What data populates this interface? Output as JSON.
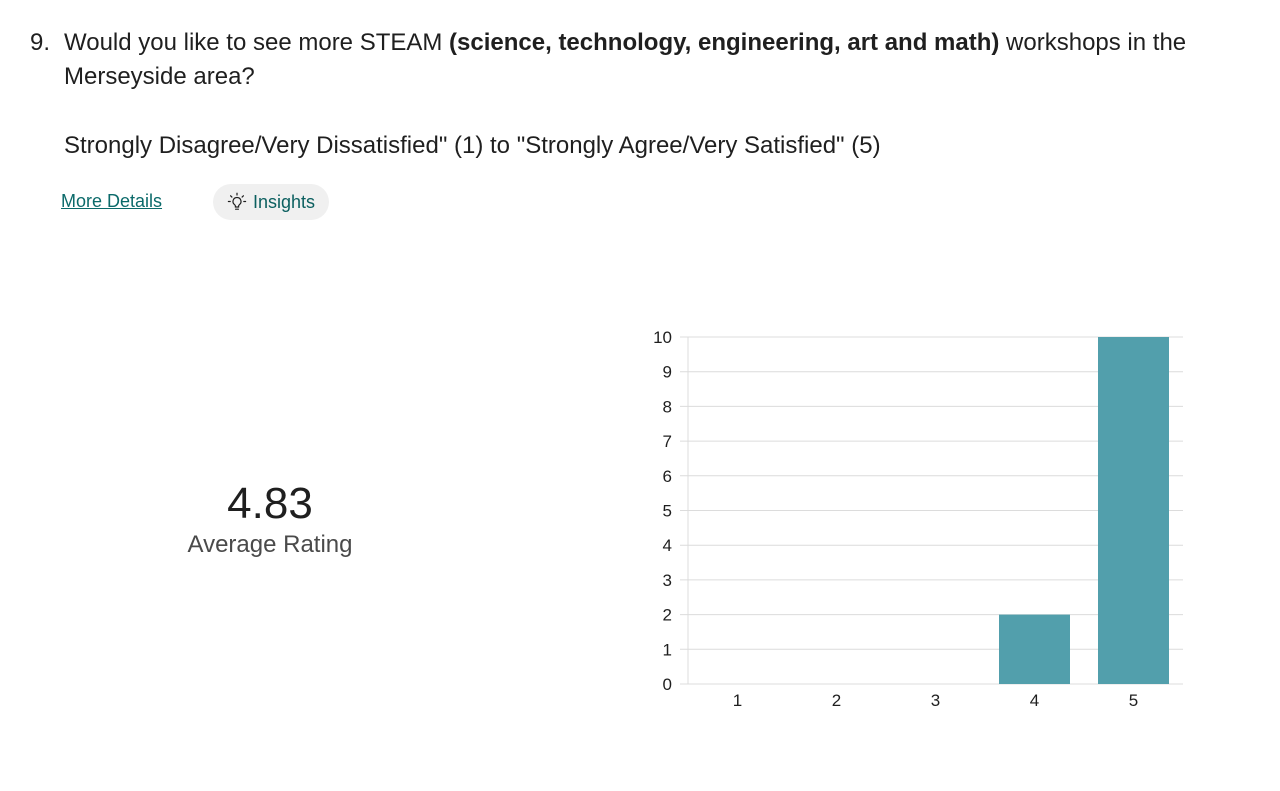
{
  "question": {
    "number": "9.",
    "text_before": "Would you like to see more STEAM ",
    "text_bold": "(science, technology, engineering, art and math)",
    "text_after": " workshops in the Merseyside area?",
    "scale_description": "Strongly Disagree/Very Dissatisfied\" (1) to \"Strongly Agree/Very Satisfied\" (5)"
  },
  "actions": {
    "more_details_label": "More Details",
    "insights_label": "Insights",
    "insights_icon": "lightbulb-icon"
  },
  "summary": {
    "average_value": "4.83",
    "average_label": "Average Rating"
  },
  "colors": {
    "bar": "#529fac",
    "grid": "#dcdcdc",
    "link": "#0b6a6a"
  },
  "chart_data": {
    "type": "bar",
    "categories": [
      "1",
      "2",
      "3",
      "4",
      "5"
    ],
    "values": [
      0,
      0,
      0,
      2,
      10
    ],
    "ylim": [
      0,
      10
    ],
    "yticks": [
      "0",
      "1",
      "2",
      "3",
      "4",
      "5",
      "6",
      "7",
      "8",
      "9",
      "10"
    ],
    "grid": true,
    "title": "",
    "xlabel": "",
    "ylabel": ""
  }
}
